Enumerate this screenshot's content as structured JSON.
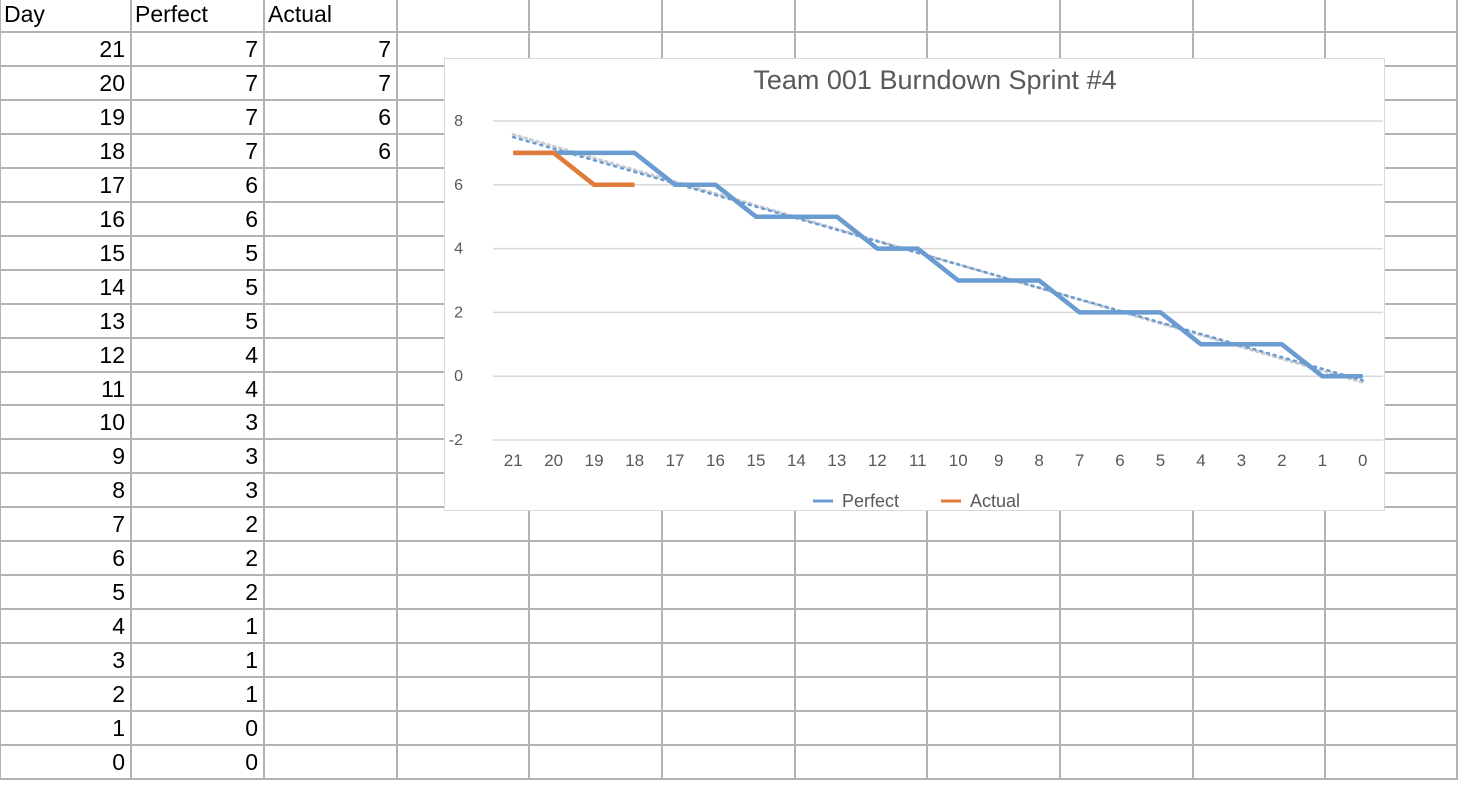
{
  "sheet": {
    "headers": [
      "Day",
      "Perfect",
      "Actual"
    ],
    "rows": [
      [
        "21",
        "7",
        "7"
      ],
      [
        "20",
        "7",
        "7"
      ],
      [
        "19",
        "7",
        "6"
      ],
      [
        "18",
        "7",
        "6"
      ],
      [
        "17",
        "6",
        ""
      ],
      [
        "16",
        "6",
        ""
      ],
      [
        "15",
        "5",
        ""
      ],
      [
        "14",
        "5",
        ""
      ],
      [
        "13",
        "5",
        ""
      ],
      [
        "12",
        "4",
        ""
      ],
      [
        "11",
        "4",
        ""
      ],
      [
        "10",
        "3",
        ""
      ],
      [
        "9",
        "3",
        ""
      ],
      [
        "8",
        "3",
        ""
      ],
      [
        "7",
        "2",
        ""
      ],
      [
        "6",
        "2",
        ""
      ],
      [
        "5",
        "2",
        ""
      ],
      [
        "4",
        "1",
        ""
      ],
      [
        "3",
        "1",
        ""
      ],
      [
        "2",
        "1",
        ""
      ],
      [
        "1",
        "0",
        ""
      ],
      [
        "0",
        "0",
        ""
      ]
    ]
  },
  "chart_data": {
    "type": "line",
    "title": "Team 001 Burndown Sprint #4",
    "categories": [
      "21",
      "20",
      "19",
      "18",
      "17",
      "16",
      "15",
      "14",
      "13",
      "12",
      "11",
      "10",
      "9",
      "8",
      "7",
      "6",
      "5",
      "4",
      "3",
      "2",
      "1",
      "0"
    ],
    "series": [
      {
        "name": "Perfect",
        "color": "#6a9bd1",
        "values": [
          7,
          7,
          7,
          7,
          6,
          6,
          5,
          5,
          5,
          4,
          4,
          3,
          3,
          3,
          2,
          2,
          2,
          1,
          1,
          1,
          0,
          0
        ]
      },
      {
        "name": "Actual",
        "color": "#e07b39",
        "values": [
          7,
          7,
          6,
          6,
          null,
          null,
          null,
          null,
          null,
          null,
          null,
          null,
          null,
          null,
          null,
          null,
          null,
          null,
          null,
          null,
          null,
          null
        ]
      }
    ],
    "trendlines": [
      {
        "series": "Perfect",
        "style": "dotted",
        "color": "#6a9bd1"
      },
      {
        "series": "Actual",
        "style": "dotted",
        "color": "#c8ccd2"
      }
    ],
    "ylim": [
      -2,
      8
    ],
    "yticks": [
      -2,
      0,
      2,
      4,
      6,
      8
    ],
    "grid": true,
    "legend": "bottom"
  }
}
